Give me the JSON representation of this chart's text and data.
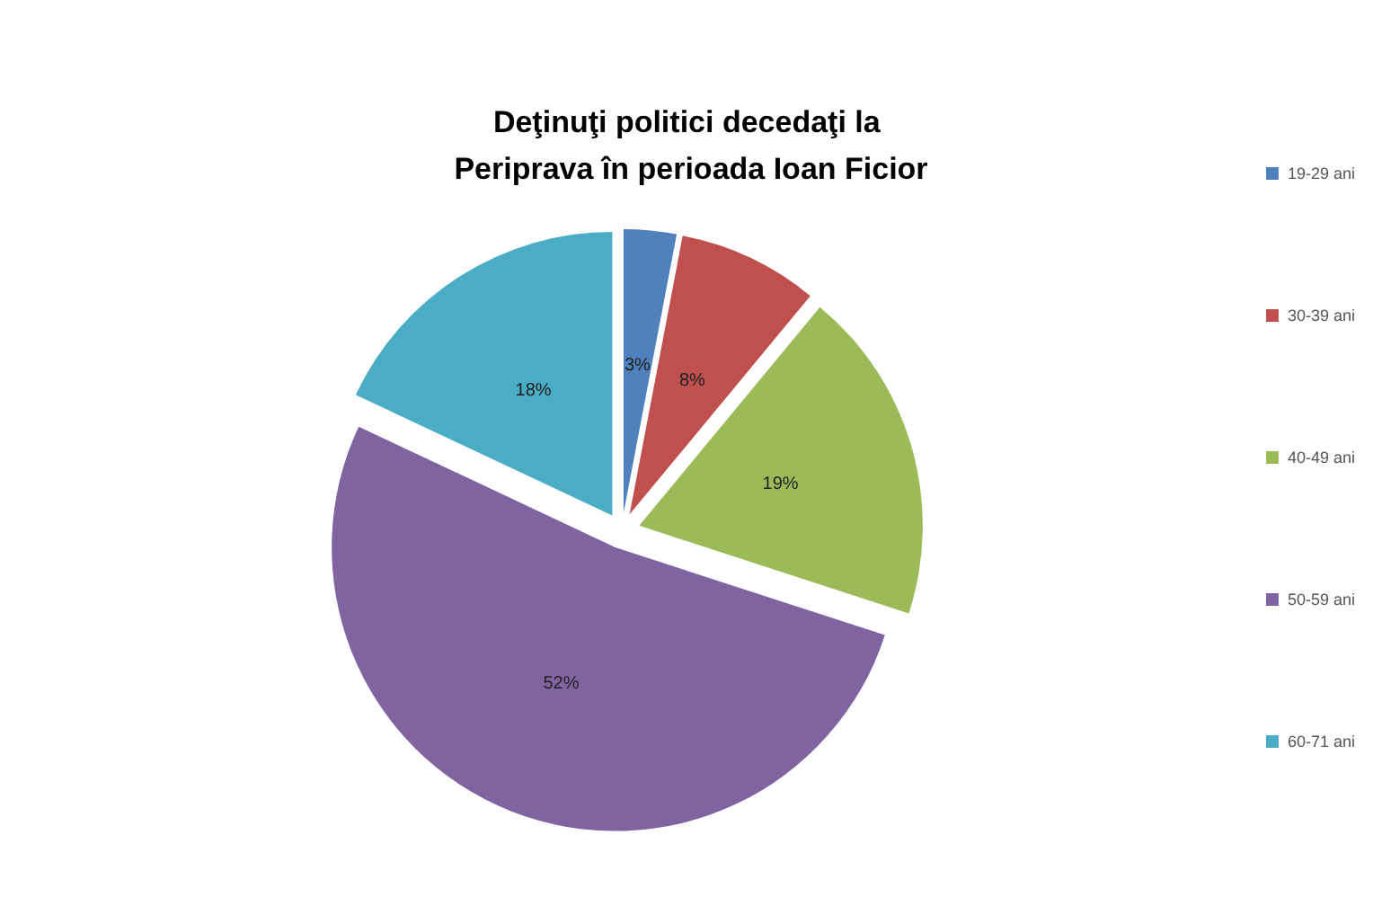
{
  "chart_data": {
    "type": "pie",
    "title": "Deţinuţi politici decedaţi la Periprava în perioada Ioan Ficior",
    "categories": [
      "19-29 ani",
      "30-39 ani",
      "40-49 ani",
      "50-59 ani",
      "60-71 ani"
    ],
    "values": [
      3,
      8,
      19,
      52,
      18
    ],
    "colors": [
      "#4f81bd",
      "#c0504d",
      "#9bbb59",
      "#8064a2",
      "#4bacc6"
    ],
    "value_labels": [
      "3%",
      "8%",
      "19%",
      "52%",
      "18%"
    ],
    "legend": "right"
  }
}
